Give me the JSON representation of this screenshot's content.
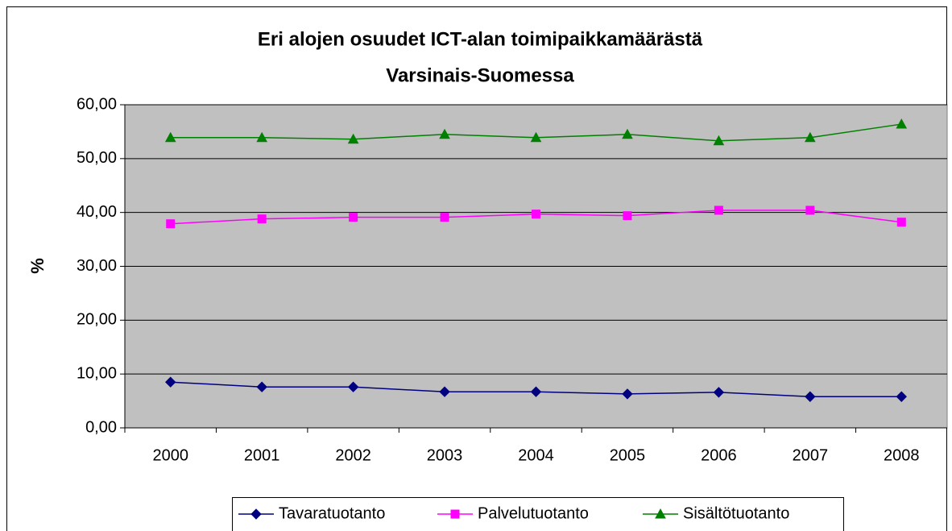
{
  "chart_data": {
    "type": "line",
    "title": [
      "Eri alojen osuudet ICT-alan toimipaikkamäärästä",
      "Varsinais-Suomessa"
    ],
    "y_label": "%",
    "categories": [
      "2000",
      "2001",
      "2002",
      "2003",
      "2004",
      "2005",
      "2006",
      "2007",
      "2008"
    ],
    "series": [
      {
        "name": "Tavaratuotanto",
        "color": "#000080",
        "marker": "diamond",
        "values": [
          8.5,
          7.6,
          7.6,
          6.7,
          6.7,
          6.3,
          6.6,
          5.8,
          5.8
        ]
      },
      {
        "name": "Palvelutuotanto",
        "color": "#ff00ff",
        "marker": "square",
        "values": [
          37.9,
          38.8,
          39.1,
          39.1,
          39.7,
          39.4,
          40.4,
          40.4,
          38.2
        ]
      },
      {
        "name": "Sisältötuotanto",
        "color": "#008000",
        "marker": "triangle",
        "values": [
          53.9,
          53.9,
          53.6,
          54.5,
          53.9,
          54.5,
          53.3,
          53.9,
          56.4
        ]
      }
    ],
    "ylim": [
      0,
      60
    ],
    "yticks": [
      {
        "value": 0,
        "label": "0,00"
      },
      {
        "value": 10,
        "label": "10,00"
      },
      {
        "value": 20,
        "label": "20,00"
      },
      {
        "value": 30,
        "label": "30,00"
      },
      {
        "value": 40,
        "label": "40,00"
      },
      {
        "value": 50,
        "label": "50,00"
      },
      {
        "value": 60,
        "label": "60,00"
      }
    ],
    "grid": true,
    "plot_background": "#c0c0c0",
    "legend": "bottom"
  }
}
